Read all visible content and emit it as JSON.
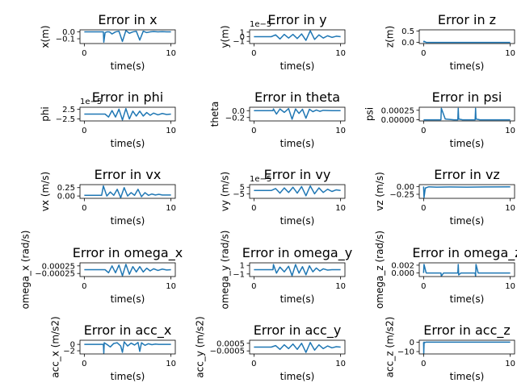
{
  "chart_data": [
    {
      "type": "line",
      "title": "Error in x",
      "xlabel": "time(s)",
      "ylabel": "x(m)",
      "xlim": [
        -0.5,
        10.5
      ],
      "ylim": [
        -0.17,
        0.03
      ],
      "xticks": [
        0,
        10
      ],
      "yticks": [
        0.0,
        -0.1
      ],
      "ytick_labels": [
        "0.0",
        "−0.1"
      ],
      "offset": "",
      "x": [
        0,
        2.2,
        2.25,
        2.4,
        2.6,
        2.9,
        3.2,
        3.6,
        4.0,
        4.4,
        4.8,
        5.2,
        5.6,
        6.0,
        6.4,
        6.8,
        7.2,
        7.6,
        8.0,
        8.5,
        9.0,
        9.5,
        10
      ],
      "y": [
        0,
        0,
        -0.15,
        -0.01,
        0,
        0,
        -0.03,
        0,
        0.01,
        -0.14,
        0.02,
        -0.02,
        0,
        0.01,
        -0.12,
        0.01,
        -0.01,
        0,
        0.005,
        0,
        0.004,
        0,
        0
      ]
    },
    {
      "type": "line",
      "title": "Error in y",
      "xlabel": "time(s)",
      "ylabel": "y(m)",
      "xlim": [
        -0.5,
        10.5
      ],
      "ylim": [
        -1.5,
        1.5
      ],
      "xticks": [
        0,
        10
      ],
      "yticks": [
        1,
        0,
        -1
      ],
      "ytick_labels": [
        "1",
        "0",
        "−1"
      ],
      "offset": "1e−5",
      "x": [
        0,
        2,
        2.5,
        3,
        3.5,
        4,
        4.5,
        5,
        5.5,
        6,
        6.5,
        7,
        7.5,
        8,
        8.5,
        9,
        9.5,
        10
      ],
      "y": [
        0,
        0,
        0.4,
        -0.5,
        0.5,
        -0.3,
        0.5,
        -0.4,
        0.6,
        -0.8,
        1.3,
        -0.6,
        0.4,
        -0.3,
        0.2,
        -0.15,
        0.1,
        0
      ]
    },
    {
      "type": "line",
      "title": "Error in z",
      "xlabel": "time(s)",
      "ylabel": "z(m)",
      "xlim": [
        -0.5,
        10.5
      ],
      "ylim": [
        -0.05,
        0.55
      ],
      "xticks": [
        0,
        10
      ],
      "yticks": [
        0.5,
        0.0
      ],
      "ytick_labels": [
        "0.5",
        "0.0"
      ],
      "offset": "",
      "x": [
        0,
        0.05,
        0.3,
        10
      ],
      "y": [
        0,
        0.05,
        0,
        0
      ]
    },
    {
      "type": "line",
      "title": "Error in phi",
      "xlabel": "time(s)",
      "ylabel": "phi",
      "xlim": [
        -0.5,
        10.5
      ],
      "ylim": [
        -3.5,
        3.5
      ],
      "xticks": [
        0,
        10
      ],
      "yticks": [
        2.5,
        -2.5
      ],
      "ytick_labels": [
        "2.5",
        "−2.5"
      ],
      "offset": "1e−5",
      "x": [
        0,
        2.4,
        2.8,
        3.2,
        3.6,
        4.0,
        4.4,
        4.8,
        5.2,
        5.6,
        6.0,
        6.4,
        6.8,
        7.2,
        7.6,
        8.0,
        8.5,
        9.0,
        9.5,
        10
      ],
      "y": [
        0,
        0,
        -1.5,
        1.8,
        -1.5,
        2.5,
        -3,
        2.8,
        -2.5,
        1.5,
        -1,
        1.5,
        -1,
        0.8,
        -0.6,
        0.5,
        -0.4,
        0.3,
        -0.2,
        0
      ]
    },
    {
      "type": "line",
      "title": "Error in theta",
      "xlabel": "time(s)",
      "ylabel": "theta",
      "xlim": [
        -0.5,
        10.5
      ],
      "ylim": [
        -0.3,
        0.1
      ],
      "xticks": [
        0,
        10
      ],
      "yticks": [
        0.0,
        -0.2
      ],
      "ytick_labels": [
        "0.0",
        "−0.2"
      ],
      "offset": "",
      "x": [
        0,
        2.2,
        2.25,
        2.6,
        3.0,
        3.5,
        4.0,
        4.4,
        4.8,
        5.2,
        5.6,
        6.0,
        6.4,
        6.8,
        7.2,
        7.6,
        8.0,
        9.0,
        10
      ],
      "y": [
        0,
        0,
        0.05,
        -0.1,
        0.05,
        -0.05,
        0.06,
        -0.25,
        0.05,
        -0.08,
        0.04,
        -0.22,
        0.04,
        -0.03,
        0.02,
        -0.02,
        0.01,
        0,
        0
      ]
    },
    {
      "type": "line",
      "title": "Error in psi",
      "xlabel": "time(s)",
      "ylabel": "psi",
      "xlim": [
        -0.5,
        10.5
      ],
      "ylim": [
        -3e-05,
        0.00033
      ],
      "xticks": [
        0,
        10
      ],
      "yticks": [
        0.00025,
        0.0
      ],
      "ytick_labels": [
        "0.00025",
        "0.00000"
      ],
      "offset": "",
      "x": [
        0,
        2.0,
        2.05,
        2.5,
        3.5,
        3.95,
        4.0,
        4.05,
        4.5,
        5.5,
        5.95,
        6.0,
        6.05,
        6.5,
        7.5,
        10
      ],
      "y": [
        0,
        0,
        0.0003,
        2e-05,
        0,
        0,
        0.0003,
        2e-05,
        0,
        0,
        0,
        0.0003,
        2e-05,
        0,
        0,
        0
      ]
    },
    {
      "type": "line",
      "title": "Error in vx",
      "xlabel": "time(s)",
      "ylabel": "vx (m/s)",
      "xlim": [
        -0.5,
        10.5
      ],
      "ylim": [
        -0.07,
        0.34
      ],
      "xticks": [
        0,
        10
      ],
      "yticks": [
        0.25,
        0.0
      ],
      "ytick_labels": [
        "0.25",
        "0.00"
      ],
      "offset": "",
      "x": [
        0,
        2.0,
        2.2,
        2.6,
        3.0,
        3.4,
        3.8,
        4.2,
        4.6,
        5.0,
        5.4,
        5.8,
        6.2,
        6.6,
        7.0,
        7.4,
        7.8,
        8.2,
        8.6,
        9.0,
        9.5,
        10
      ],
      "y": [
        0.02,
        0.02,
        0.3,
        0,
        0.12,
        0.02,
        0.2,
        -0.05,
        0.25,
        0,
        0.1,
        0.02,
        0.2,
        -0.02,
        0.1,
        0.02,
        0.06,
        0.03,
        0.05,
        0.03,
        0.03,
        0.03
      ]
    },
    {
      "type": "line",
      "title": "Error in vy",
      "xlabel": "time(s)",
      "ylabel": "vy (m/s)",
      "xlim": [
        -0.5,
        10.5
      ],
      "ylim": [
        -12,
        9
      ],
      "xticks": [
        0,
        10
      ],
      "yticks": [
        5,
        -5
      ],
      "ytick_labels": [
        "5",
        "−5"
      ],
      "offset": "1e−5",
      "x": [
        0,
        2,
        2.5,
        3,
        3.5,
        4,
        4.5,
        5,
        5.5,
        6,
        6.5,
        7,
        7.5,
        8,
        8.5,
        9,
        9.5,
        10
      ],
      "y": [
        0,
        0,
        3,
        -4,
        4,
        -3,
        5,
        -4,
        6,
        -8,
        7,
        -5,
        4,
        -3,
        2,
        -1.5,
        1,
        0
      ]
    },
    {
      "type": "line",
      "title": "Error in vz",
      "xlabel": "time(s)",
      "ylabel": "vz (m/s)",
      "xlim": [
        -0.5,
        10.5
      ],
      "ylim": [
        -0.38,
        0.06
      ],
      "xticks": [
        0,
        10
      ],
      "yticks": [
        0.0,
        -0.25
      ],
      "ytick_labels": [
        "0.00",
        "−0.25"
      ],
      "offset": "",
      "x": [
        0,
        0.05,
        0.2,
        0.6,
        1.5,
        3,
        5,
        7,
        10
      ],
      "y": [
        0,
        -0.35,
        -0.05,
        -0.01,
        -0.02,
        -0.015,
        -0.02,
        -0.015,
        -0.01
      ]
    },
    {
      "type": "line",
      "title": "Error in omega_x",
      "xlabel": "time(s)",
      "ylabel": "omega_x (rad/s)",
      "xlim": [
        -0.5,
        10.5
      ],
      "ylim": [
        -0.00045,
        0.00045
      ],
      "xticks": [
        0,
        10
      ],
      "yticks": [
        0.00025,
        -0.00025
      ],
      "ytick_labels": [
        "0.00025",
        "−0.00025"
      ],
      "offset": "",
      "x": [
        0,
        2.4,
        2.8,
        3.2,
        3.6,
        4.0,
        4.4,
        4.8,
        5.2,
        5.6,
        6.0,
        6.4,
        6.8,
        7.2,
        7.6,
        8.0,
        8.5,
        9.0,
        9.5,
        10
      ],
      "y": [
        0,
        0,
        -0.0002,
        0.00025,
        -0.0002,
        0.0003,
        -0.0004,
        0.00035,
        -0.0003,
        0.0002,
        -0.00015,
        0.0002,
        -0.00015,
        0.0001,
        -8e-05,
        6e-05,
        -5e-05,
        4e-05,
        -2e-05,
        0
      ]
    },
    {
      "type": "line",
      "title": "Error in omega_y",
      "xlabel": "time(s)",
      "ylabel": "omega_y (rad/s)",
      "xlim": [
        -0.5,
        10.5
      ],
      "ylim": [
        -1.6,
        1.6
      ],
      "xticks": [
        0,
        10
      ],
      "yticks": [
        1,
        -1
      ],
      "ytick_labels": [
        "1",
        "−1"
      ],
      "offset": "",
      "x": [
        0,
        2.2,
        2.25,
        2.6,
        3.0,
        3.5,
        4.0,
        4.4,
        4.8,
        5.2,
        5.6,
        6.0,
        6.4,
        6.8,
        7.2,
        7.6,
        8.0,
        8.5,
        9.0,
        10
      ],
      "y": [
        0,
        0,
        1.2,
        -0.8,
        0.6,
        -0.5,
        0.8,
        -1.4,
        1.2,
        -0.8,
        0.7,
        -1.2,
        0.9,
        -0.5,
        0.4,
        -0.3,
        0.2,
        -0.1,
        0,
        0
      ]
    },
    {
      "type": "line",
      "title": "Error in omega_z",
      "xlabel": "time(s)",
      "ylabel": "omega_z (rad/s)",
      "xlim": [
        -0.5,
        10.5
      ],
      "ylim": [
        -0.0009,
        0.0026
      ],
      "xticks": [
        0,
        10
      ],
      "yticks": [
        0.002,
        0.0
      ],
      "ytick_labels": [
        "0.002",
        "0.000"
      ],
      "offset": "",
      "x": [
        0,
        0.05,
        0.3,
        2.0,
        2.05,
        2.3,
        3.95,
        4.0,
        4.05,
        4.3,
        5.95,
        6.0,
        6.05,
        6.3,
        10
      ],
      "y": [
        0,
        0.0022,
        0,
        0,
        -0.0008,
        0,
        0,
        0.0022,
        -0.0005,
        0,
        0,
        -0.0008,
        0.0022,
        0,
        0
      ]
    },
    {
      "type": "line",
      "title": "Error in acc_x",
      "xlabel": "time(s)",
      "ylabel": "acc_x (m/s2)",
      "xlim": [
        -0.5,
        10.5
      ],
      "ylim": [
        -3,
        1.3
      ],
      "xticks": [
        0,
        10
      ],
      "yticks": [
        0,
        -2
      ],
      "ytick_labels": [
        "0",
        "−2"
      ],
      "offset": "",
      "x": [
        0,
        2.2,
        2.25,
        2.3,
        2.6,
        3.0,
        3.4,
        3.8,
        4.2,
        4.4,
        4.6,
        5.0,
        5.4,
        5.8,
        6.2,
        6.4,
        6.6,
        7.0,
        7.4,
        7.8,
        8.2,
        8.6,
        9.0,
        10
      ],
      "y": [
        0,
        0,
        -2.8,
        0.5,
        0,
        -0.8,
        0.3,
        0.5,
        -0.5,
        -2.5,
        0.8,
        -0.5,
        0.4,
        -0.2,
        0.6,
        -2.2,
        0.5,
        -0.3,
        0.2,
        -0.1,
        0.1,
        0,
        0,
        0
      ]
    },
    {
      "type": "line",
      "title": "Error in acc_y",
      "xlabel": "time(s)",
      "ylabel": "acc_y (m/s2)",
      "xlim": [
        -0.5,
        10.5
      ],
      "ylim": [
        -0.0009,
        0.0009
      ],
      "xticks": [
        0,
        10
      ],
      "yticks": [
        0.0005,
        -0.0005
      ],
      "ytick_labels": [
        "0.0005",
        "−0.0005"
      ],
      "offset": "",
      "x": [
        0,
        2,
        2.5,
        3,
        3.5,
        4,
        4.5,
        5,
        5.5,
        6,
        6.5,
        7,
        7.5,
        8,
        8.5,
        9,
        9.5,
        10
      ],
      "y": [
        0,
        0,
        0.0002,
        -0.0003,
        0.0003,
        -0.0002,
        0.0004,
        -0.0003,
        0.0005,
        -0.0007,
        0.0006,
        -0.0004,
        0.0003,
        -0.0002,
        0.00015,
        -0.0001,
        5e-05,
        0
      ]
    },
    {
      "type": "line",
      "title": "Error in acc_z",
      "xlabel": "time(s)",
      "ylabel": "acc_z (m/s2)",
      "xlim": [
        -0.5,
        10.5
      ],
      "ylim": [
        -12.5,
        2
      ],
      "xticks": [
        0,
        10
      ],
      "yticks": [
        0,
        -10
      ],
      "ytick_labels": [
        "0",
        "−10"
      ],
      "offset": "",
      "x": [
        0,
        0.02,
        0.06,
        0.12,
        0.3,
        10
      ],
      "y": [
        0,
        -12,
        0,
        -0.5,
        0,
        0
      ]
    }
  ]
}
